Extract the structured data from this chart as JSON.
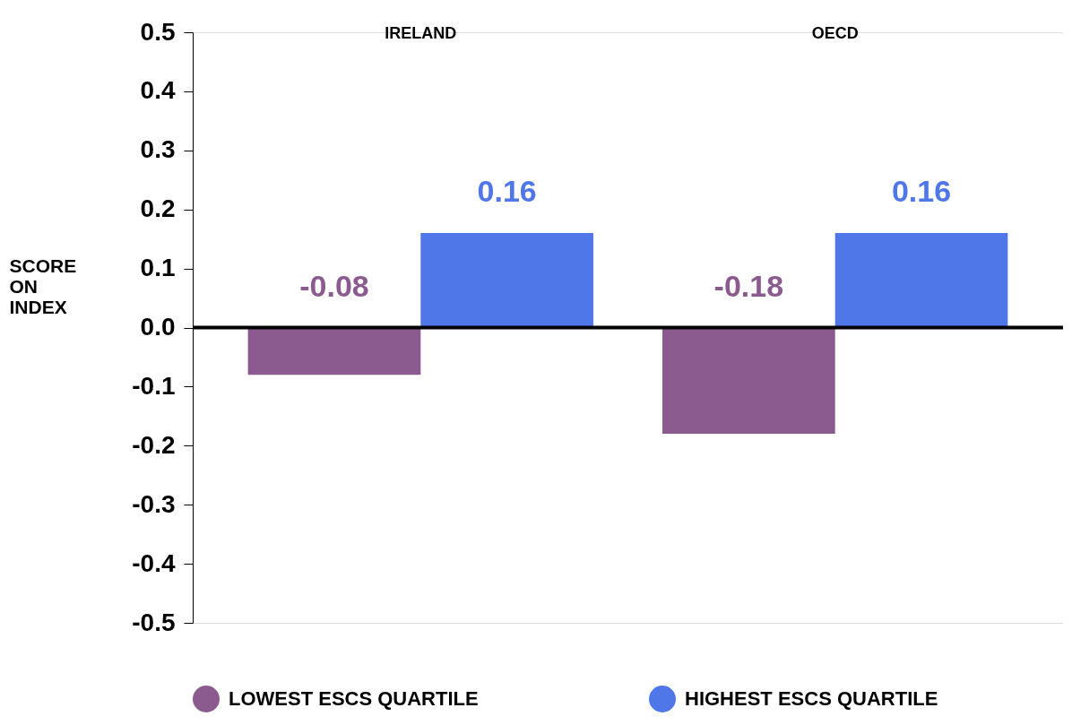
{
  "chart_data": {
    "type": "bar",
    "ylabel": "SCORE ON INDEX",
    "categories": [
      "IRELAND",
      "OECD"
    ],
    "series": [
      {
        "name": "LOWEST ESCS QUARTILE",
        "color": "#8b5b8f",
        "values": [
          -0.08,
          -0.18
        ]
      },
      {
        "name": "HIGHEST ESCS QUARTILE",
        "color": "#5077e8",
        "values": [
          0.16,
          0.16
        ]
      }
    ],
    "ylim": [
      -0.5,
      0.5
    ],
    "yticks": [
      -0.5,
      -0.4,
      -0.3,
      -0.2,
      -0.1,
      {
        "value": 0,
        "label": "0.0"
      },
      0.1,
      0.2,
      0.3,
      0.4,
      0.5
    ],
    "ref_lines": [
      {
        "axis": "y",
        "value": 0,
        "color": "#000000"
      }
    ],
    "data_labels": true,
    "grid": false,
    "legend": "bottom"
  }
}
